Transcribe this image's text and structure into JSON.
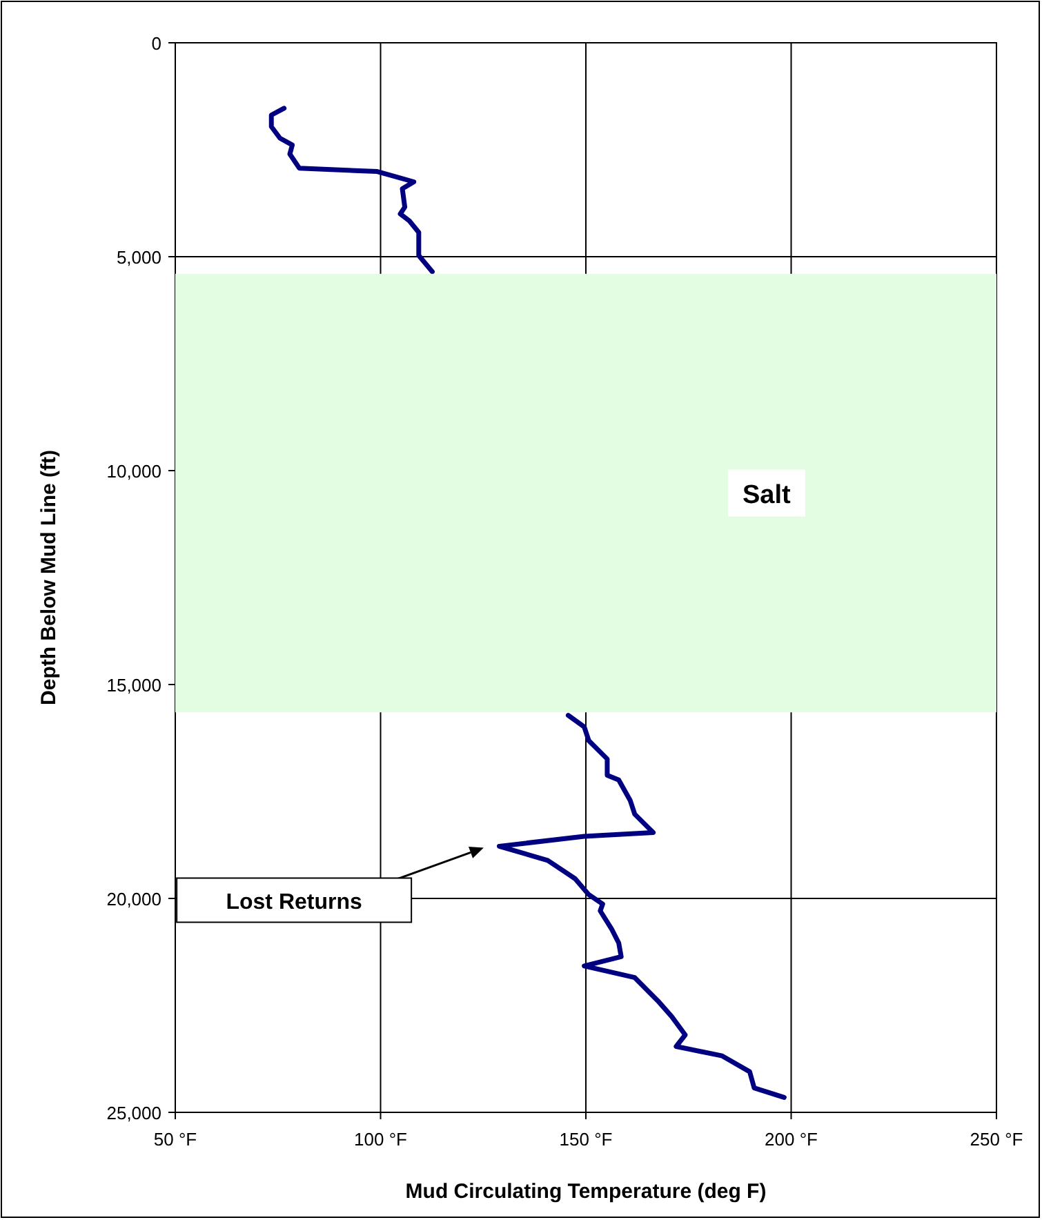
{
  "chart_data": {
    "type": "line",
    "xlabel": "Mud Circulating Temperature (deg F)",
    "ylabel": "Depth Below Mud Line (ft)",
    "xlim": [
      50,
      250
    ],
    "xticks": [
      {
        "value": 50,
        "label": "50 °F"
      },
      {
        "value": 100,
        "label": "100 °F"
      },
      {
        "value": 150,
        "label": "150 °F"
      },
      {
        "value": 200,
        "label": "200 °F"
      },
      {
        "value": 250,
        "label": "250 °F"
      }
    ],
    "ylim": [
      25000,
      0
    ],
    "yticks": [
      0,
      {
        "value": 5000,
        "label": "5,000"
      },
      {
        "value": 10000,
        "label": "10,000"
      },
      {
        "value": 15000,
        "label": "15,000"
      },
      {
        "value": 20000,
        "label": "20,000"
      },
      {
        "value": 25000,
        "label": "25,000"
      }
    ],
    "grid": true,
    "marker": "none",
    "line_style": "solid",
    "series": [
      {
        "color": "#000080",
        "x": [
          76.5,
          73.4,
          73.4,
          75.5,
          78.5,
          77.9,
          80.2,
          99.2,
          108.1,
          105.3,
          105.9,
          104.8,
          107.0,
          109.3,
          109.3,
          112.6,
          null,
          145.7,
          149.6,
          150.7,
          155.2,
          155.2,
          158.0,
          160.8,
          161.9,
          166.4,
          149.6,
          128.9,
          140.7,
          147.4,
          150.7,
          154.1,
          153.5,
          156.3,
          158.0,
          158.6,
          149.6,
          161.9,
          167.5,
          170.9,
          174.2,
          172.0,
          183.2,
          189.9,
          191.0,
          198.3
        ],
        "values": [
          1530,
          1690,
          1960,
          2230,
          2390,
          2600,
          2930,
          3010,
          3250,
          3410,
          3840,
          4000,
          4160,
          4430,
          4970,
          5350,
          null,
          15720,
          15990,
          16310,
          16740,
          17120,
          17230,
          17710,
          18030,
          18460,
          18550,
          18780,
          19110,
          19540,
          19910,
          20130,
          20290,
          20720,
          21040,
          21360,
          21580,
          21850,
          22390,
          22760,
          23190,
          23460,
          23680,
          24050,
          24430,
          24650
        ]
      }
    ],
    "bands": [
      {
        "axis": "y",
        "from": 5400,
        "to": 15650,
        "label": "Salt",
        "color": "#e3fde3"
      }
    ],
    "annotations": [
      "Lost Returns"
    ]
  }
}
